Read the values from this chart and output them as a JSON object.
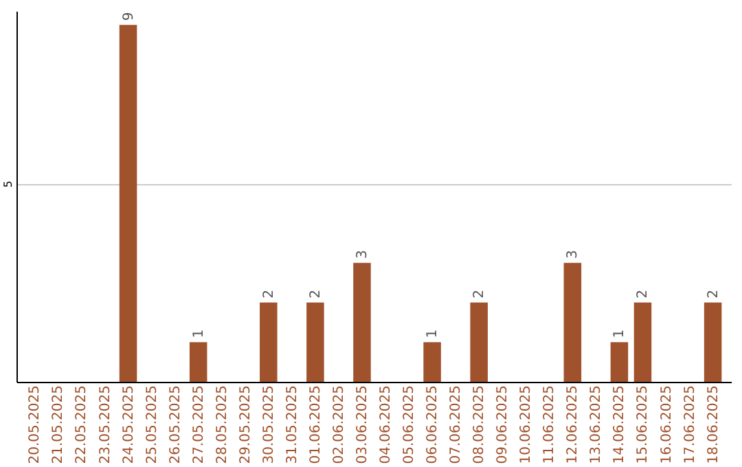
{
  "chart_data": {
    "type": "bar",
    "categories": [
      "20.05.2025",
      "21.05.2025",
      "22.05.2025",
      "23.05.2025",
      "24.05.2025",
      "25.05.2025",
      "26.05.2025",
      "27.05.2025",
      "28.05.2025",
      "29.05.2025",
      "30.05.2025",
      "31.05.2025",
      "01.06.2025",
      "02.06.2025",
      "03.06.2025",
      "04.06.2025",
      "05.06.2025",
      "06.06.2025",
      "07.06.2025",
      "08.06.2025",
      "09.06.2025",
      "10.06.2025",
      "11.06.2025",
      "12.06.2025",
      "13.06.2025",
      "14.06.2025",
      "15.06.2025",
      "16.06.2025",
      "17.06.2025",
      "18.06.2025"
    ],
    "values": [
      0,
      0,
      0,
      0,
      9,
      0,
      0,
      1,
      0,
      0,
      2,
      0,
      2,
      0,
      3,
      0,
      0,
      1,
      0,
      2,
      0,
      0,
      0,
      3,
      0,
      1,
      2,
      0,
      0,
      2
    ],
    "value_labels": [
      null,
      null,
      null,
      null,
      "9",
      null,
      null,
      "1",
      null,
      null,
      "2",
      null,
      "2",
      null,
      "3",
      null,
      null,
      "1",
      null,
      "2",
      null,
      null,
      null,
      "3",
      null,
      "1",
      "2",
      null,
      null,
      "2"
    ],
    "color": "#a0522d",
    "ylim": [
      0,
      9.35
    ],
    "yticks": [
      5
    ],
    "grid": "y"
  }
}
